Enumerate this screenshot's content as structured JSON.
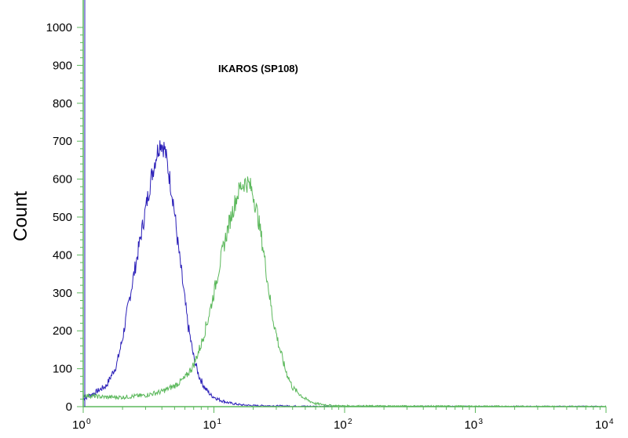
{
  "chart_data": {
    "type": "line",
    "title": "IKAROS (SP108)",
    "xlabel": "",
    "ylabel": "Count",
    "x_scale": "log",
    "xlim": [
      1,
      10000
    ],
    "ylim": [
      0,
      1000
    ],
    "y_ticks": [
      0,
      100,
      200,
      300,
      400,
      500,
      600,
      700,
      800,
      900,
      1000
    ],
    "x_ticks": [
      {
        "base": "10",
        "exp": "0"
      },
      {
        "base": "10",
        "exp": "1"
      },
      {
        "base": "10",
        "exp": "2"
      },
      {
        "base": "10",
        "exp": "3"
      },
      {
        "base": "10",
        "exp": "4"
      }
    ],
    "grid": false,
    "legend": "none",
    "series": [
      {
        "color": "#2b1fb8",
        "x": [
          1.0,
          1.2,
          1.5,
          1.8,
          2.0,
          2.3,
          2.6,
          3.0,
          3.3,
          3.6,
          3.9,
          4.2,
          4.5,
          4.9,
          5.3,
          5.8,
          6.3,
          7.0,
          7.7,
          8.5,
          9.5,
          11,
          13,
          16,
          20,
          30,
          50,
          100,
          1000,
          10000
        ],
        "y": [
          20,
          35,
          55,
          110,
          180,
          300,
          400,
          520,
          600,
          660,
          700,
          680,
          620,
          540,
          430,
          320,
          220,
          130,
          80,
          50,
          30,
          18,
          10,
          5,
          3,
          2,
          1,
          0,
          0,
          0
        ]
      },
      {
        "color": "#5bb85b",
        "x": [
          1.0,
          1.5,
          2.0,
          3.0,
          4.0,
          5.0,
          6.0,
          7.0,
          8.0,
          9.0,
          10,
          11,
          12,
          13,
          14,
          15,
          16,
          17,
          18,
          19,
          20,
          22,
          24,
          26,
          28,
          31,
          35,
          40,
          50,
          60,
          80,
          100,
          1000,
          10000
        ],
        "y": [
          30,
          25,
          25,
          30,
          40,
          55,
          75,
          110,
          165,
          230,
          300,
          370,
          430,
          480,
          520,
          555,
          580,
          590,
          590,
          580,
          560,
          490,
          410,
          320,
          240,
          170,
          100,
          50,
          20,
          8,
          3,
          2,
          1,
          0
        ]
      }
    ]
  }
}
